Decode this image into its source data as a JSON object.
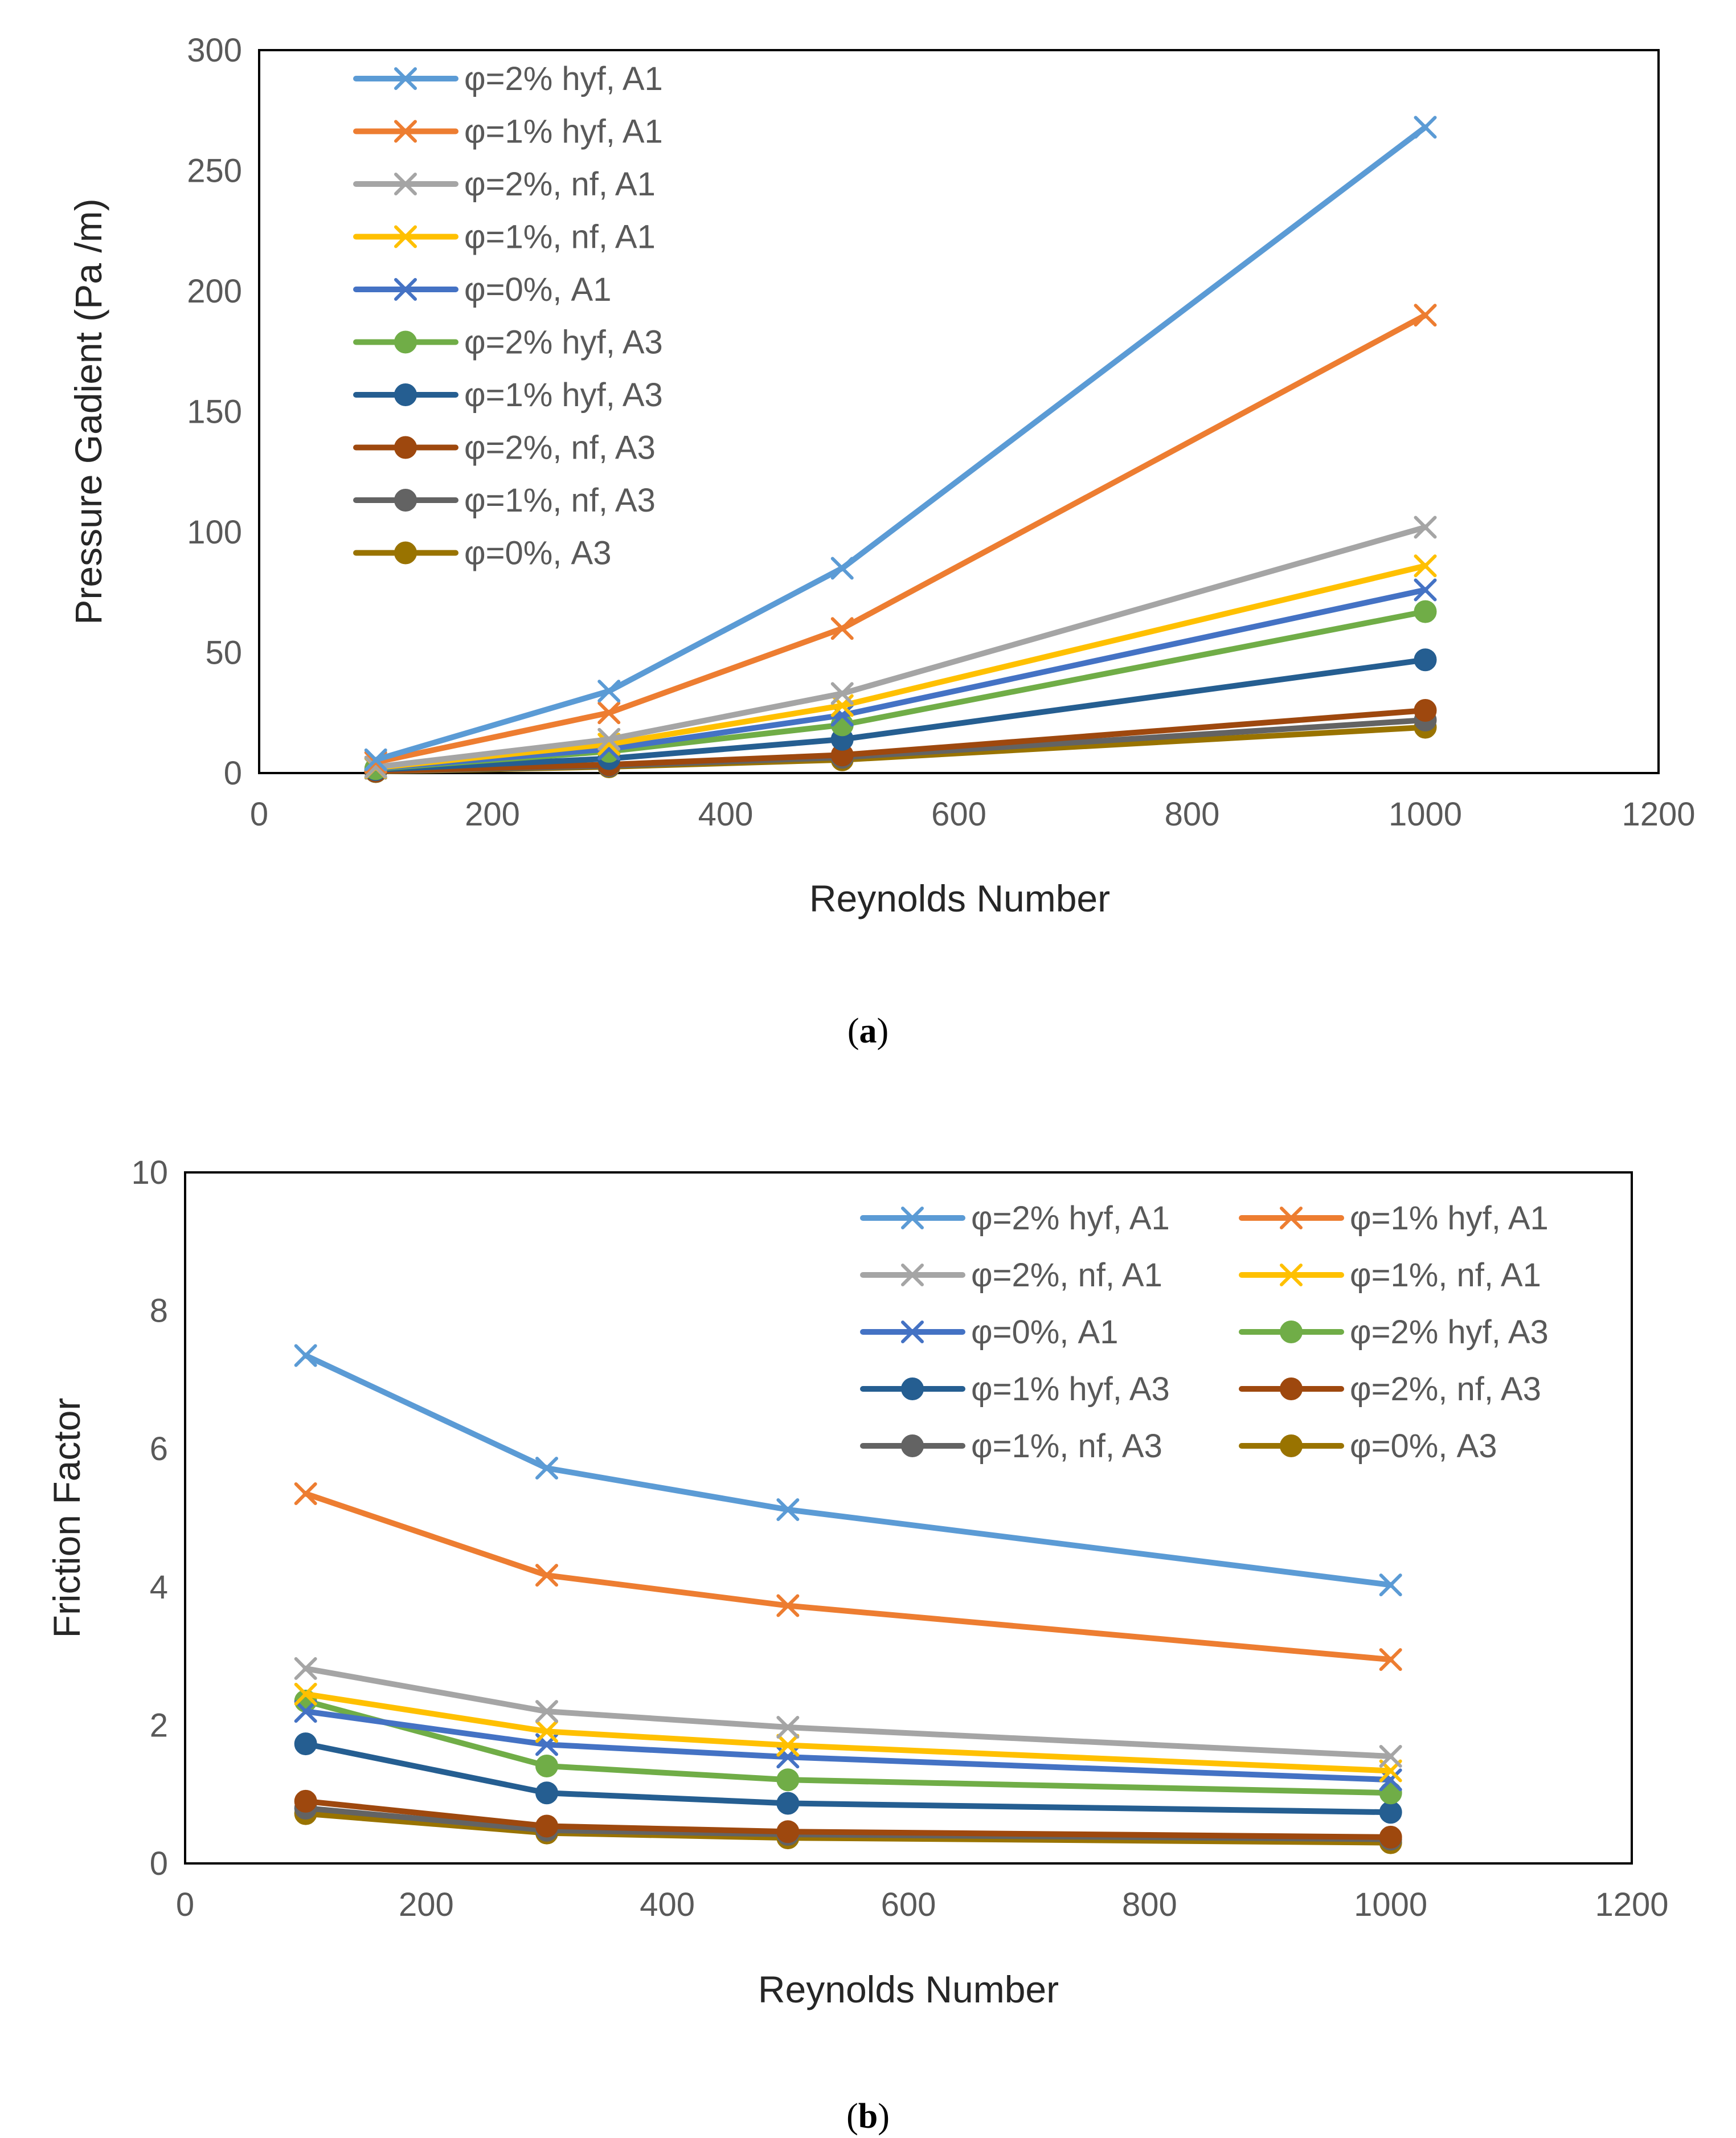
{
  "chart_data": [
    {
      "type": "line",
      "panel_label": "a",
      "xlabel": "Reynolds Number",
      "ylabel": "Pressure Gadient (Pa /m)",
      "xlim": [
        0,
        1200
      ],
      "ylim": [
        0,
        300
      ],
      "xticks": [
        0,
        200,
        400,
        600,
        800,
        1000,
        1200
      ],
      "yticks": [
        0,
        50,
        100,
        150,
        200,
        250,
        300
      ],
      "grid": false,
      "legend_position": "top-left",
      "legend_columns": 1,
      "x": [
        100,
        300,
        500,
        1000
      ],
      "series": [
        {
          "name": "φ=2% hyf, A1",
          "color": "#5B9BD5",
          "marker": "x",
          "values": [
            5.5,
            34,
            85,
            268
          ]
        },
        {
          "name": "φ=1% hyf, A1",
          "color": "#ED7D31",
          "marker": "x",
          "values": [
            4.5,
            25,
            60,
            190
          ]
        },
        {
          "name": "φ=2%, nf, A1",
          "color": "#A5A5A5",
          "marker": "x",
          "values": [
            2.5,
            14,
            33,
            102
          ]
        },
        {
          "name": "φ=1%, nf, A1",
          "color": "#FFC000",
          "marker": "x",
          "values": [
            2.2,
            12,
            28,
            86
          ]
        },
        {
          "name": "φ=0%, A1",
          "color": "#4472C4",
          "marker": "x",
          "values": [
            2.0,
            10,
            24,
            76
          ]
        },
        {
          "name": "φ=2% hyf, A3",
          "color": "#70AD47",
          "marker": "circle",
          "values": [
            1.8,
            9,
            20,
            67
          ]
        },
        {
          "name": "φ=1% hyf, A3",
          "color": "#255E91",
          "marker": "circle",
          "values": [
            1.4,
            6,
            14,
            47
          ]
        },
        {
          "name": "φ=2%, nf, A3",
          "color": "#9E480E",
          "marker": "circle",
          "values": [
            0.8,
            3.5,
            7.5,
            26
          ]
        },
        {
          "name": "φ=1%, nf, A3",
          "color": "#636363",
          "marker": "circle",
          "values": [
            0.7,
            3.0,
            6.5,
            22
          ]
        },
        {
          "name": "φ=0%, A3",
          "color": "#997300",
          "marker": "circle",
          "values": [
            0.6,
            2.6,
            5.5,
            19
          ]
        }
      ]
    },
    {
      "type": "line",
      "panel_label": "b",
      "xlabel": "Reynolds Number",
      "ylabel": "Friction Factor",
      "xlim": [
        0,
        1200
      ],
      "ylim": [
        0,
        10
      ],
      "xticks": [
        0,
        200,
        400,
        600,
        800,
        1000,
        1200
      ],
      "yticks": [
        0,
        2,
        4,
        6,
        8,
        10
      ],
      "grid": false,
      "legend_position": "top-right",
      "legend_columns": 2,
      "x": [
        100,
        300,
        500,
        1000
      ],
      "series": [
        {
          "name": "φ=2% hyf, A1",
          "color": "#5B9BD5",
          "marker": "x",
          "values": [
            7.35,
            5.72,
            5.12,
            4.03
          ]
        },
        {
          "name": "φ=1% hyf, A1",
          "color": "#ED7D31",
          "marker": "x",
          "values": [
            5.35,
            4.17,
            3.73,
            2.95
          ]
        },
        {
          "name": "φ=2%, nf, A1",
          "color": "#A5A5A5",
          "marker": "x",
          "values": [
            2.82,
            2.2,
            1.97,
            1.55
          ]
        },
        {
          "name": "φ=1%, nf, A1",
          "color": "#FFC000",
          "marker": "x",
          "values": [
            2.45,
            1.91,
            1.71,
            1.34
          ]
        },
        {
          "name": "φ=0%, A1",
          "color": "#4472C4",
          "marker": "x",
          "values": [
            2.2,
            1.72,
            1.54,
            1.21
          ]
        },
        {
          "name": "φ=2% hyf, A3",
          "color": "#70AD47",
          "marker": "circle",
          "values": [
            2.35,
            1.41,
            1.21,
            1.02
          ]
        },
        {
          "name": "φ=1% hyf, A3",
          "color": "#255E91",
          "marker": "circle",
          "values": [
            1.73,
            1.02,
            0.87,
            0.74
          ]
        },
        {
          "name": "φ=2%, nf, A3",
          "color": "#9E480E",
          "marker": "circle",
          "values": [
            0.9,
            0.54,
            0.46,
            0.38
          ]
        },
        {
          "name": "φ=1%, nf, A3",
          "color": "#636363",
          "marker": "circle",
          "values": [
            0.8,
            0.48,
            0.42,
            0.35
          ]
        },
        {
          "name": "φ=0%, A3",
          "color": "#997300",
          "marker": "circle",
          "values": [
            0.72,
            0.44,
            0.37,
            0.3
          ]
        }
      ]
    }
  ]
}
